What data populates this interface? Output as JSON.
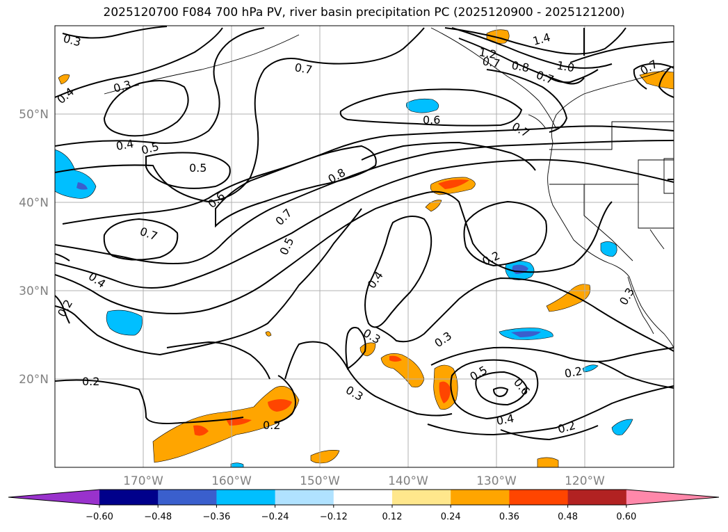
{
  "title": "2025120700 F084 700 hPa PV, river basin precipitation PC (2025120900 - 2025121200)",
  "lat_ticks": [
    "50°N",
    "40°N",
    "30°N",
    "20°N"
  ],
  "lon_ticks": [
    "170°W",
    "160°W",
    "150°W",
    "140°W",
    "130°W",
    "120°W"
  ],
  "contour_labels": [
    "0.3",
    "0.3",
    "0.4",
    "0.4",
    "0.5",
    "0.5",
    "0.5",
    "0.6",
    "0.6",
    "0.7",
    "0.7",
    "0.7",
    "0.7",
    "0.8",
    "0.8",
    "0.7",
    "1.0",
    "1.2",
    "1.4",
    "0.7",
    "0.7",
    "0.4",
    "0.4",
    "0.2",
    "0.2",
    "0.2",
    "0.3",
    "0.3",
    "0.3",
    "0.2",
    "0.5",
    "0.6",
    "0.4",
    "0.2",
    "0.2",
    "0.3"
  ],
  "colorbar": {
    "tick_labels": [
      "−0.60",
      "−0.48",
      "−0.36",
      "−0.24",
      "−0.12",
      "0.12",
      "0.24",
      "0.36",
      "0.48",
      "0.60"
    ],
    "colors": [
      "#9932cc",
      "#00008b",
      "#3a5fcd",
      "#00bfff",
      "#b0e2ff",
      "#ffffff",
      "#ffe78c",
      "#ffa500",
      "#ff4500",
      "#b22222",
      "#ff88aa"
    ]
  },
  "chart_data": {
    "type": "map",
    "variables": [
      "700 hPa PV",
      "river basin precipitation PC"
    ],
    "lon_range": [
      "180°W",
      "110°W"
    ],
    "lat_range": [
      "10°N",
      "60°N"
    ],
    "grid": true
  }
}
